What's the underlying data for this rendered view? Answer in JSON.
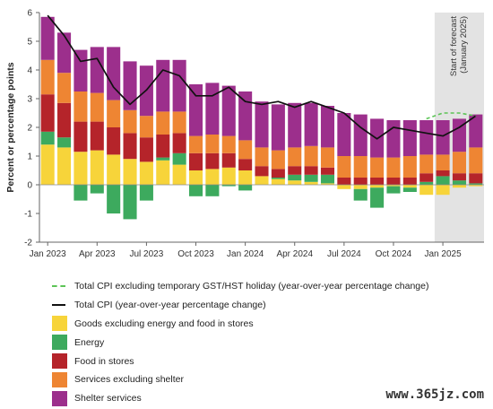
{
  "chart_data": {
    "type": "bar",
    "stacked": true,
    "ylabel": "Percent or percentage points",
    "ylim": [
      -2,
      6
    ],
    "yticks": [
      -2,
      -1,
      0,
      1,
      2,
      3,
      4,
      5,
      6
    ],
    "grid": false,
    "months": [
      "Jan 2023",
      "Feb 2023",
      "Mar 2023",
      "Apr 2023",
      "May 2023",
      "Jun 2023",
      "Jul 2023",
      "Aug 2023",
      "Sep 2023",
      "Oct 2023",
      "Nov 2023",
      "Dec 2023",
      "Jan 2024",
      "Feb 2024",
      "Mar 2024",
      "Apr 2024",
      "May 2024",
      "Jun 2024",
      "Jul 2024",
      "Aug 2024",
      "Sep 2024",
      "Oct 2024",
      "Nov 2024",
      "Dec 2024",
      "Jan 2025",
      "Feb 2025",
      "Mar 2025"
    ],
    "xtick_labels": [
      {
        "index": 0,
        "label": "Jan 2023"
      },
      {
        "index": 3,
        "label": "Apr 2023"
      },
      {
        "index": 6,
        "label": "Jul 2023"
      },
      {
        "index": 9,
        "label": "Oct 2023"
      },
      {
        "index": 12,
        "label": "Jan 2024"
      },
      {
        "index": 15,
        "label": "Apr 2024"
      },
      {
        "index": 18,
        "label": "Jul 2024"
      },
      {
        "index": 21,
        "label": "Oct 2024"
      },
      {
        "index": 24,
        "label": "Jan 2025"
      }
    ],
    "forecast_start_index": 24,
    "forecast_label_lines": [
      "Start of forecast",
      "(January 2025)"
    ],
    "series": [
      {
        "name": "Goods excluding energy and food in stores",
        "color": "#F7D43A",
        "values": [
          1.4,
          1.3,
          1.15,
          1.2,
          1.05,
          0.9,
          0.8,
          0.85,
          0.7,
          0.5,
          0.55,
          0.6,
          0.5,
          0.3,
          0.2,
          0.15,
          0.1,
          0.05,
          -0.15,
          -0.15,
          -0.1,
          -0.05,
          -0.1,
          -0.35,
          -0.35,
          -0.1,
          -0.05
        ]
      },
      {
        "name": "Energy",
        "color": "#3DAA5E",
        "values": [
          0.45,
          0.35,
          -0.55,
          -0.3,
          -1.0,
          -1.2,
          -0.55,
          0.1,
          0.4,
          -0.4,
          -0.4,
          -0.05,
          -0.2,
          0.0,
          0.05,
          0.2,
          0.25,
          0.3,
          0.0,
          -0.4,
          -0.7,
          -0.25,
          -0.15,
          0.1,
          0.3,
          0.15,
          0.05
        ]
      },
      {
        "name": "Food in stores",
        "color": "#B5242A",
        "values": [
          1.3,
          1.2,
          1.05,
          1.0,
          0.95,
          0.9,
          0.85,
          0.8,
          0.7,
          0.6,
          0.55,
          0.5,
          0.4,
          0.35,
          0.3,
          0.3,
          0.3,
          0.25,
          0.25,
          0.25,
          0.25,
          0.25,
          0.25,
          0.3,
          0.2,
          0.25,
          0.35
        ]
      },
      {
        "name": "Services excluding shelter",
        "color": "#EE8533",
        "values": [
          1.2,
          1.05,
          1.05,
          1.0,
          0.95,
          0.8,
          0.75,
          0.8,
          0.75,
          0.6,
          0.65,
          0.6,
          0.65,
          0.65,
          0.65,
          0.65,
          0.7,
          0.7,
          0.75,
          0.75,
          0.7,
          0.7,
          0.75,
          0.65,
          0.55,
          0.75,
          0.9
        ]
      },
      {
        "name": "Shelter services",
        "color": "#9C2F8C",
        "values": [
          1.5,
          1.4,
          1.45,
          1.6,
          1.85,
          1.7,
          1.75,
          1.8,
          1.8,
          1.8,
          1.8,
          1.75,
          1.7,
          1.6,
          1.6,
          1.55,
          1.5,
          1.45,
          1.5,
          1.45,
          1.35,
          1.3,
          1.25,
          1.2,
          1.2,
          1.15,
          1.15
        ]
      }
    ],
    "total_cpi": {
      "name": "Total CPI (year-over-year percentage change)",
      "color": "#111111",
      "values": [
        5.9,
        5.2,
        4.3,
        4.4,
        3.4,
        2.8,
        3.3,
        4.0,
        3.8,
        3.1,
        3.1,
        3.4,
        2.9,
        2.8,
        2.9,
        2.7,
        2.9,
        2.7,
        2.5,
        2.0,
        1.6,
        2.0,
        1.9,
        1.8,
        1.7,
        2.0,
        2.4
      ]
    },
    "total_cpi_ex_gst": {
      "name": "Total CPI excluding temporary GST/HST holiday (year-over-year percentage change)",
      "color": "#5CC456",
      "start_index": 23,
      "values": [
        2.3,
        2.5,
        2.5,
        2.4
      ]
    }
  },
  "legend_order": [
    {
      "key": "total_cpi_ex_gst",
      "kind": "dashed-line"
    },
    {
      "key": "total_cpi",
      "kind": "line"
    },
    {
      "key": "series.0",
      "kind": "box"
    },
    {
      "key": "series.1",
      "kind": "box"
    },
    {
      "key": "series.2",
      "kind": "box"
    },
    {
      "key": "series.3",
      "kind": "box"
    },
    {
      "key": "series.4",
      "kind": "box"
    }
  ],
  "watermark": "www.365jz.com"
}
